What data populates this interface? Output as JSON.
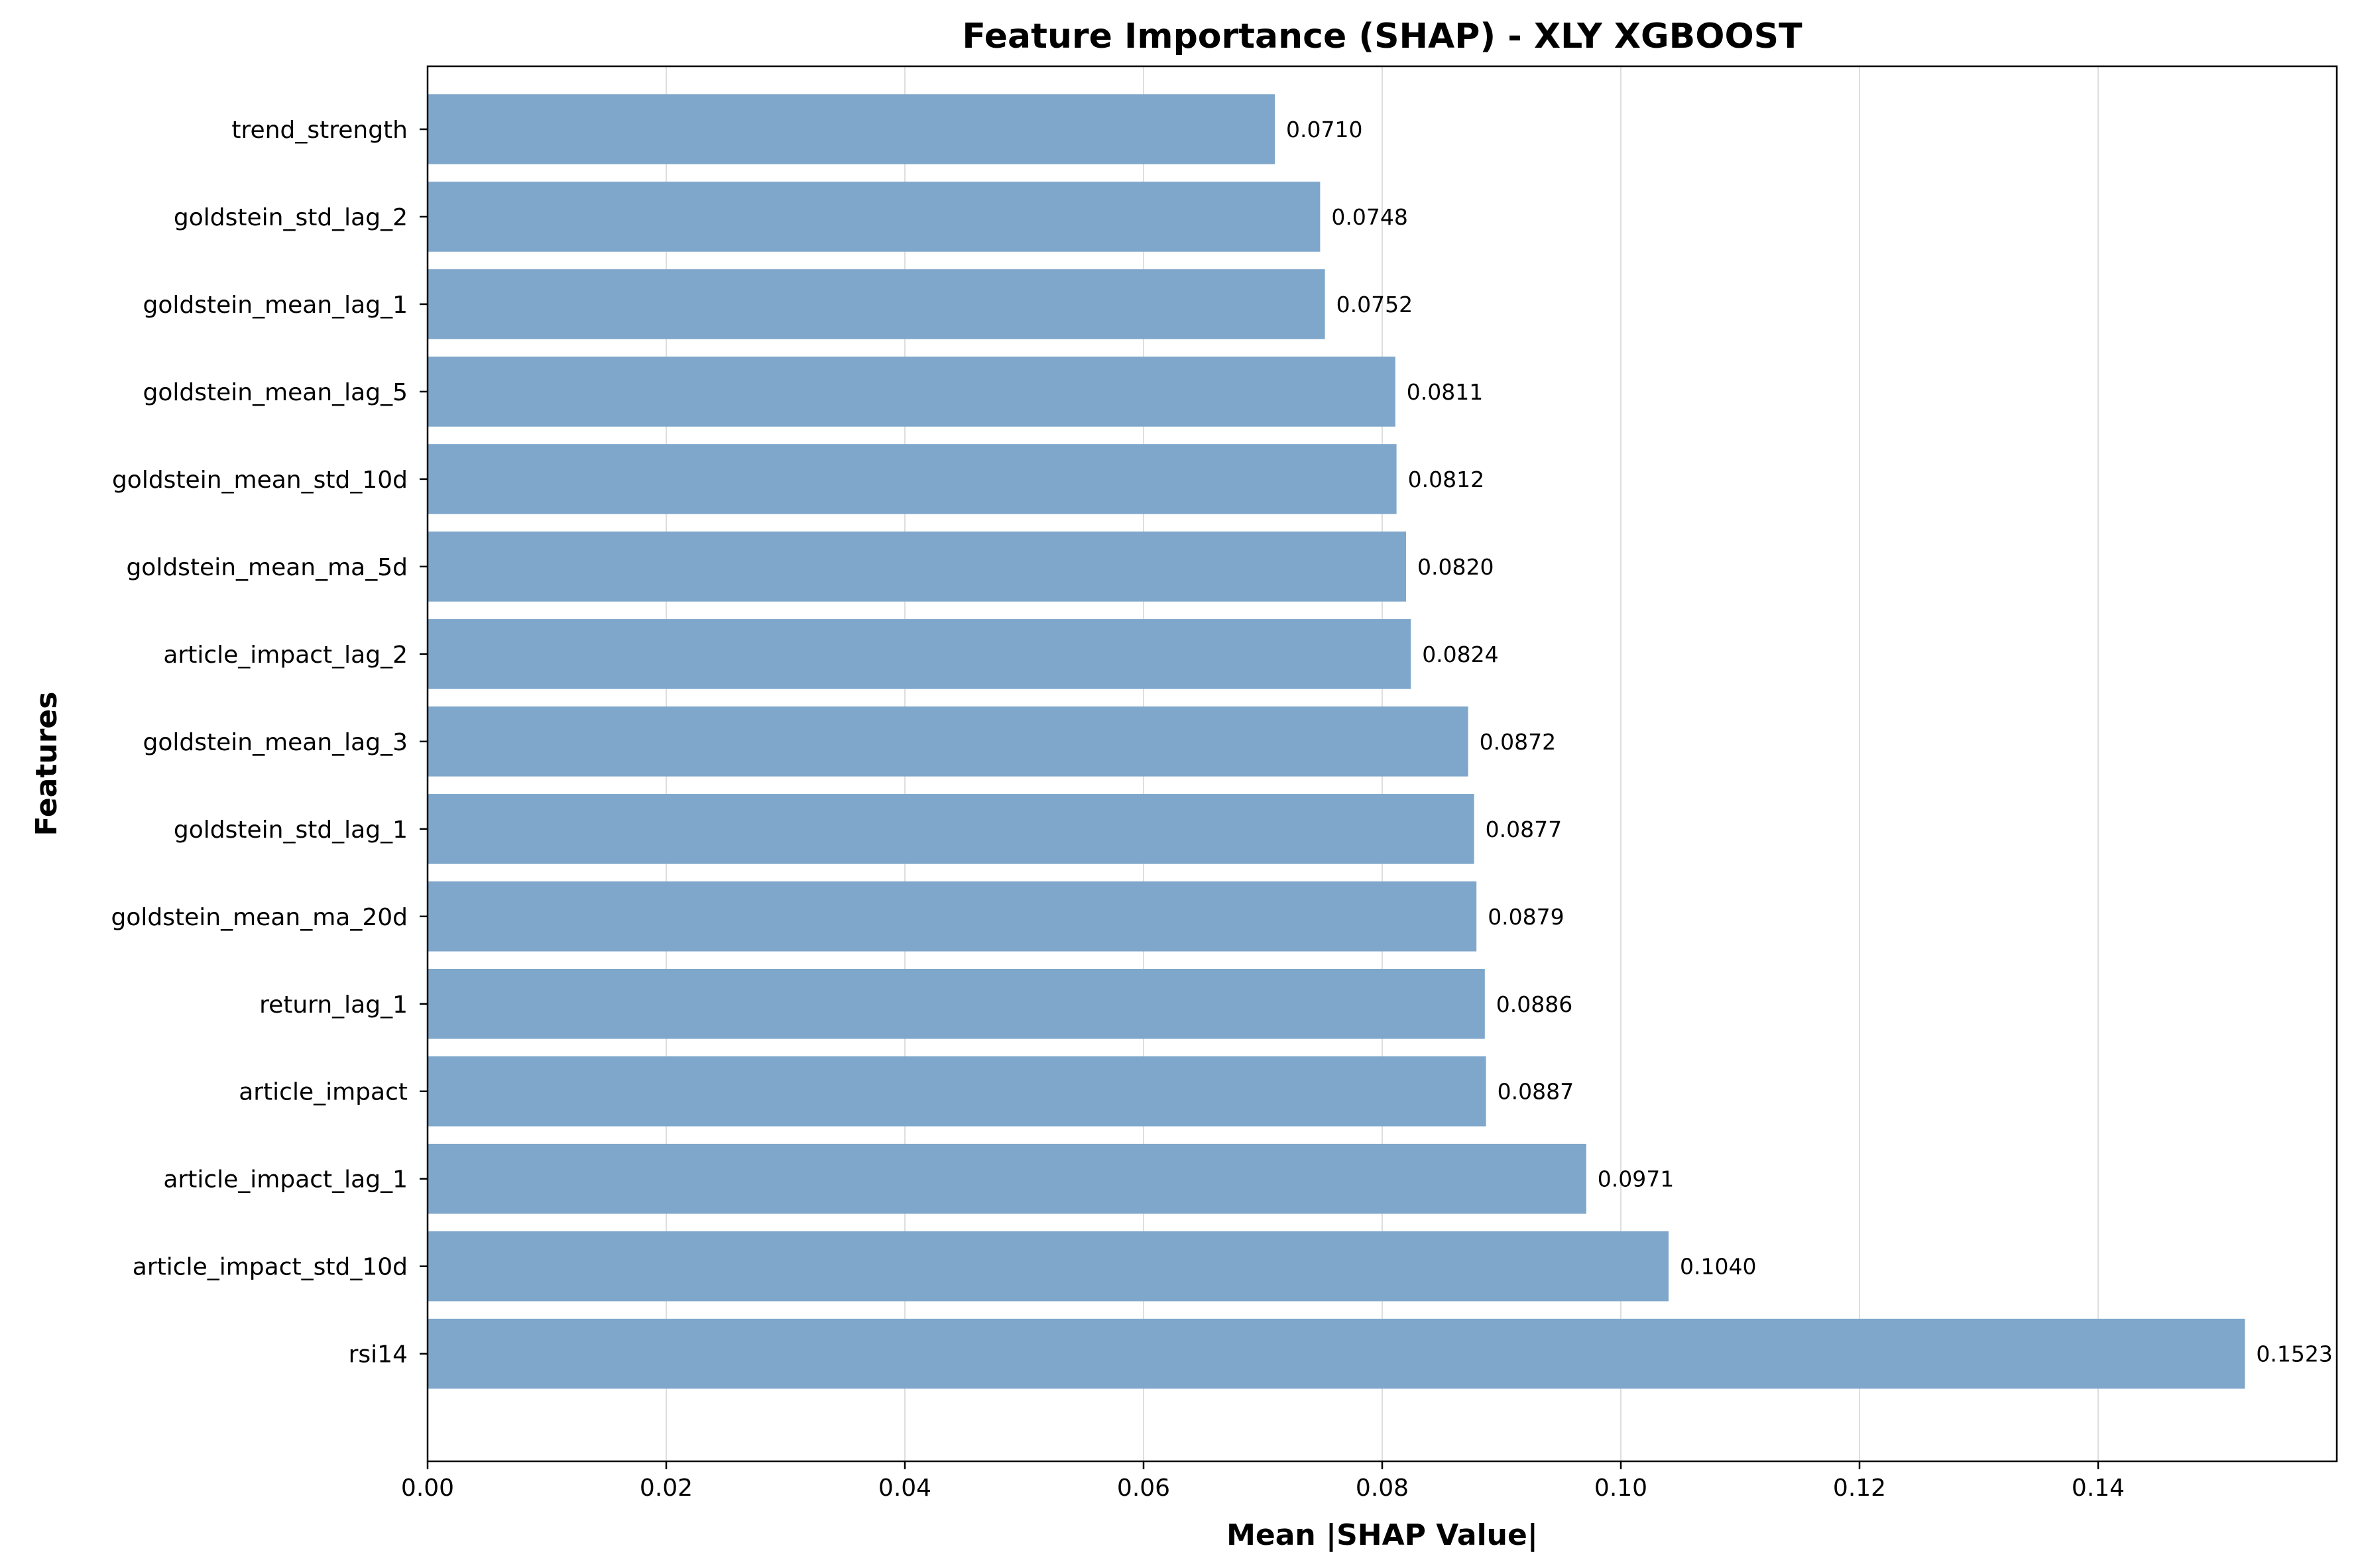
{
  "chart_data": {
    "type": "bar",
    "orientation": "horizontal",
    "title": "Feature Importance (SHAP) - XLY XGBOOST",
    "xlabel": "Mean |SHAP Value|",
    "ylabel": "Features",
    "xlim": [
      0,
      0.16
    ],
    "xticks": [
      "0.00",
      "0.02",
      "0.04",
      "0.06",
      "0.08",
      "0.10",
      "0.12",
      "0.14"
    ],
    "xtick_values": [
      0,
      0.02,
      0.04,
      0.06,
      0.08,
      0.1,
      0.12,
      0.14
    ],
    "grid": "x",
    "bar_color": "#7fa7cb",
    "categories": [
      "trend_strength",
      "goldstein_std_lag_2",
      "goldstein_mean_lag_1",
      "goldstein_mean_lag_5",
      "goldstein_mean_std_10d",
      "goldstein_mean_ma_5d",
      "article_impact_lag_2",
      "goldstein_mean_lag_3",
      "goldstein_std_lag_1",
      "goldstein_mean_ma_20d",
      "return_lag_1",
      "article_impact",
      "article_impact_lag_1",
      "article_impact_std_10d",
      "rsi14"
    ],
    "values": [
      0.071,
      0.0748,
      0.0752,
      0.0811,
      0.0812,
      0.082,
      0.0824,
      0.0872,
      0.0877,
      0.0879,
      0.0886,
      0.0887,
      0.0971,
      0.104,
      0.1523
    ],
    "value_labels": [
      "0.0710",
      "0.0748",
      "0.0752",
      "0.0811",
      "0.0812",
      "0.0820",
      "0.0824",
      "0.0872",
      "0.0877",
      "0.0879",
      "0.0886",
      "0.0887",
      "0.0971",
      "0.1040",
      "0.1523"
    ]
  }
}
